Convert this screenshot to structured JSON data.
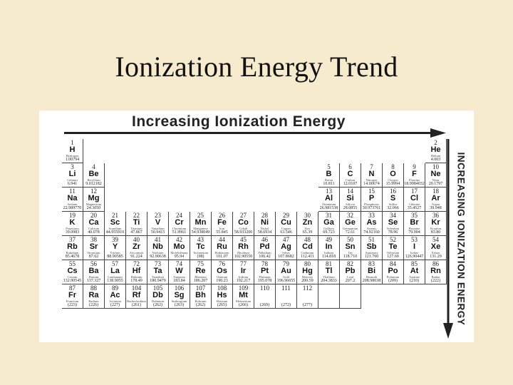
{
  "slide": {
    "title": "Ionization Energy Trend"
  },
  "figure": {
    "horizontal_label": "Increasing Ionization Energy",
    "vertical_label": "INCREASING IONIZATION ENERGY",
    "arrow_color": "#222222"
  },
  "elements": [
    {
      "n": "1",
      "s": "H",
      "name": "Hydrogen",
      "m": "1.00794",
      "row": 1,
      "col": 1
    },
    {
      "n": "2",
      "s": "He",
      "name": "Helium",
      "m": "4.003",
      "row": 1,
      "col": 18
    },
    {
      "n": "3",
      "s": "Li",
      "name": "Lithium",
      "m": "6.941",
      "row": 2,
      "col": 1
    },
    {
      "n": "4",
      "s": "Be",
      "name": "Beryllium",
      "m": "9.012182",
      "row": 2,
      "col": 2
    },
    {
      "n": "5",
      "s": "B",
      "name": "Boron",
      "m": "10.811",
      "row": 2,
      "col": 13
    },
    {
      "n": "6",
      "s": "C",
      "name": "Carbon",
      "m": "12.0107",
      "row": 2,
      "col": 14
    },
    {
      "n": "7",
      "s": "N",
      "name": "Nitrogen",
      "m": "14.00674",
      "row": 2,
      "col": 15
    },
    {
      "n": "8",
      "s": "O",
      "name": "Oxygen",
      "m": "15.9994",
      "row": 2,
      "col": 16
    },
    {
      "n": "9",
      "s": "F",
      "name": "Fluorine",
      "m": "18.9984032",
      "row": 2,
      "col": 17
    },
    {
      "n": "10",
      "s": "Ne",
      "name": "Neon",
      "m": "20.1797",
      "row": 2,
      "col": 18
    },
    {
      "n": "11",
      "s": "Na",
      "name": "Sodium",
      "m": "22.989770",
      "row": 3,
      "col": 1
    },
    {
      "n": "12",
      "s": "Mg",
      "name": "Magnesium",
      "m": "24.3050",
      "row": 3,
      "col": 2
    },
    {
      "n": "13",
      "s": "Al",
      "name": "Aluminum",
      "m": "26.981538",
      "row": 3,
      "col": 13
    },
    {
      "n": "14",
      "s": "Si",
      "name": "Silicon",
      "m": "28.0855",
      "row": 3,
      "col": 14
    },
    {
      "n": "15",
      "s": "P",
      "name": "Phosphorus",
      "m": "30.973761",
      "row": 3,
      "col": 15
    },
    {
      "n": "16",
      "s": "S",
      "name": "Sulfur",
      "m": "32.066",
      "row": 3,
      "col": 16
    },
    {
      "n": "17",
      "s": "Cl",
      "name": "Chlorine",
      "m": "35.4527",
      "row": 3,
      "col": 17
    },
    {
      "n": "18",
      "s": "Ar",
      "name": "Argon",
      "m": "39.948",
      "row": 3,
      "col": 18
    },
    {
      "n": "19",
      "s": "K",
      "name": "Potassium",
      "m": "39.0983",
      "row": 4,
      "col": 1
    },
    {
      "n": "20",
      "s": "Ca",
      "name": "Calcium",
      "m": "40.078",
      "row": 4,
      "col": 2
    },
    {
      "n": "21",
      "s": "Sc",
      "name": "Scandium",
      "m": "44.955910",
      "row": 4,
      "col": 3
    },
    {
      "n": "22",
      "s": "Ti",
      "name": "Titanium",
      "m": "47.867",
      "row": 4,
      "col": 4
    },
    {
      "n": "23",
      "s": "V",
      "name": "Vanadium",
      "m": "50.9415",
      "row": 4,
      "col": 5
    },
    {
      "n": "24",
      "s": "Cr",
      "name": "Chromium",
      "m": "51.9961",
      "row": 4,
      "col": 6
    },
    {
      "n": "25",
      "s": "Mn",
      "name": "Manganese",
      "m": "54.938049",
      "row": 4,
      "col": 7
    },
    {
      "n": "26",
      "s": "Fe",
      "name": "Iron",
      "m": "55.845",
      "row": 4,
      "col": 8
    },
    {
      "n": "27",
      "s": "Co",
      "name": "Cobalt",
      "m": "58.933200",
      "row": 4,
      "col": 9
    },
    {
      "n": "28",
      "s": "Ni",
      "name": "Nickel",
      "m": "58.6934",
      "row": 4,
      "col": 10
    },
    {
      "n": "29",
      "s": "Cu",
      "name": "Copper",
      "m": "63.546",
      "row": 4,
      "col": 11
    },
    {
      "n": "30",
      "s": "Zn",
      "name": "Zinc",
      "m": "65.39",
      "row": 4,
      "col": 12
    },
    {
      "n": "31",
      "s": "Ga",
      "name": "Gallium",
      "m": "69.723",
      "row": 4,
      "col": 13
    },
    {
      "n": "32",
      "s": "Ge",
      "name": "Germanium",
      "m": "72.61",
      "row": 4,
      "col": 14
    },
    {
      "n": "33",
      "s": "As",
      "name": "Arsenic",
      "m": "74.92160",
      "row": 4,
      "col": 15
    },
    {
      "n": "34",
      "s": "Se",
      "name": "Selenium",
      "m": "78.96",
      "row": 4,
      "col": 16
    },
    {
      "n": "35",
      "s": "Br",
      "name": "Bromine",
      "m": "79.904",
      "row": 4,
      "col": 17
    },
    {
      "n": "36",
      "s": "Kr",
      "name": "Krypton",
      "m": "83.80",
      "row": 4,
      "col": 18
    },
    {
      "n": "37",
      "s": "Rb",
      "name": "Rubidium",
      "m": "85.4678",
      "row": 5,
      "col": 1
    },
    {
      "n": "38",
      "s": "Sr",
      "name": "Strontium",
      "m": "87.62",
      "row": 5,
      "col": 2
    },
    {
      "n": "39",
      "s": "Y",
      "name": "Yttrium",
      "m": "88.90585",
      "row": 5,
      "col": 3
    },
    {
      "n": "40",
      "s": "Zr",
      "name": "Zirconium",
      "m": "91.224",
      "row": 5,
      "col": 4
    },
    {
      "n": "41",
      "s": "Nb",
      "name": "Niobium",
      "m": "92.90638",
      "row": 5,
      "col": 5
    },
    {
      "n": "42",
      "s": "Mo",
      "name": "Molybdenum",
      "m": "95.94",
      "row": 5,
      "col": 6
    },
    {
      "n": "43",
      "s": "Tc",
      "name": "Technetium",
      "m": "(98)",
      "row": 5,
      "col": 7
    },
    {
      "n": "44",
      "s": "Ru",
      "name": "Ruthenium",
      "m": "101.07",
      "row": 5,
      "col": 8
    },
    {
      "n": "45",
      "s": "Rh",
      "name": "Rhodium",
      "m": "102.90550",
      "row": 5,
      "col": 9
    },
    {
      "n": "46",
      "s": "Pd",
      "name": "Palladium",
      "m": "106.42",
      "row": 5,
      "col": 10
    },
    {
      "n": "47",
      "s": "Ag",
      "name": "Silver",
      "m": "107.8682",
      "row": 5,
      "col": 11
    },
    {
      "n": "48",
      "s": "Cd",
      "name": "Cadmium",
      "m": "112.411",
      "row": 5,
      "col": 12
    },
    {
      "n": "49",
      "s": "In",
      "name": "Indium",
      "m": "114.818",
      "row": 5,
      "col": 13
    },
    {
      "n": "50",
      "s": "Sn",
      "name": "Tin",
      "m": "118.710",
      "row": 5,
      "col": 14
    },
    {
      "n": "51",
      "s": "Sb",
      "name": "Antimony",
      "m": "121.760",
      "row": 5,
      "col": 15
    },
    {
      "n": "52",
      "s": "Te",
      "name": "Tellurium",
      "m": "127.60",
      "row": 5,
      "col": 16
    },
    {
      "n": "53",
      "s": "I",
      "name": "Iodine",
      "m": "126.90447",
      "row": 5,
      "col": 17
    },
    {
      "n": "54",
      "s": "Xe",
      "name": "Xenon",
      "m": "131.29",
      "row": 5,
      "col": 18
    },
    {
      "n": "55",
      "s": "Cs",
      "name": "Cesium",
      "m": "132.90545",
      "row": 6,
      "col": 1
    },
    {
      "n": "56",
      "s": "Ba",
      "name": "Barium",
      "m": "137.327",
      "row": 6,
      "col": 2
    },
    {
      "n": "57",
      "s": "La",
      "name": "Lanthanum",
      "m": "138.9055",
      "row": 6,
      "col": 3
    },
    {
      "n": "72",
      "s": "Hf",
      "name": "Hafnium",
      "m": "178.49",
      "row": 6,
      "col": 4
    },
    {
      "n": "73",
      "s": "Ta",
      "name": "Tantalum",
      "m": "180.9479",
      "row": 6,
      "col": 5
    },
    {
      "n": "74",
      "s": "W",
      "name": "Tungsten",
      "m": "183.84",
      "row": 6,
      "col": 6
    },
    {
      "n": "75",
      "s": "Re",
      "name": "Rhenium",
      "m": "186.207",
      "row": 6,
      "col": 7
    },
    {
      "n": "76",
      "s": "Os",
      "name": "Osmium",
      "m": "190.23",
      "row": 6,
      "col": 8
    },
    {
      "n": "77",
      "s": "Ir",
      "name": "Iridium",
      "m": "192.217",
      "row": 6,
      "col": 9
    },
    {
      "n": "78",
      "s": "Pt",
      "name": "Platinum",
      "m": "195.078",
      "row": 6,
      "col": 10
    },
    {
      "n": "79",
      "s": "Au",
      "name": "Gold",
      "m": "196.96655",
      "row": 6,
      "col": 11
    },
    {
      "n": "80",
      "s": "Hg",
      "name": "Mercury",
      "m": "200.59",
      "row": 6,
      "col": 12
    },
    {
      "n": "81",
      "s": "Tl",
      "name": "Thallium",
      "m": "204.3833",
      "row": 6,
      "col": 13
    },
    {
      "n": "82",
      "s": "Pb",
      "name": "Lead",
      "m": "207.2",
      "row": 6,
      "col": 14
    },
    {
      "n": "83",
      "s": "Bi",
      "name": "Bismuth",
      "m": "208.98038",
      "row": 6,
      "col": 15
    },
    {
      "n": "84",
      "s": "Po",
      "name": "Polonium",
      "m": "(209)",
      "row": 6,
      "col": 16
    },
    {
      "n": "85",
      "s": "At",
      "name": "Astatine",
      "m": "(210)",
      "row": 6,
      "col": 17
    },
    {
      "n": "86",
      "s": "Rn",
      "name": "Radon",
      "m": "(222)",
      "row": 6,
      "col": 18
    },
    {
      "n": "87",
      "s": "Fr",
      "name": "Francium",
      "m": "(223)",
      "row": 7,
      "col": 1
    },
    {
      "n": "88",
      "s": "Ra",
      "name": "Radium",
      "m": "(226)",
      "row": 7,
      "col": 2
    },
    {
      "n": "89",
      "s": "Ac",
      "name": "Actinium",
      "m": "(227)",
      "row": 7,
      "col": 3
    },
    {
      "n": "104",
      "s": "Rf",
      "name": "Rutherfordium",
      "m": "(261)",
      "row": 7,
      "col": 4
    },
    {
      "n": "105",
      "s": "Db",
      "name": "Dubnium",
      "m": "(262)",
      "row": 7,
      "col": 5
    },
    {
      "n": "106",
      "s": "Sg",
      "name": "Seaborgium",
      "m": "(263)",
      "row": 7,
      "col": 6
    },
    {
      "n": "107",
      "s": "Bh",
      "name": "Bohrium",
      "m": "(262)",
      "row": 7,
      "col": 7
    },
    {
      "n": "108",
      "s": "Hs",
      "name": "Hassium",
      "m": "(265)",
      "row": 7,
      "col": 8
    },
    {
      "n": "109",
      "s": "Mt",
      "name": "Meitnerium",
      "m": "(266)",
      "row": 7,
      "col": 9
    },
    {
      "n": "110",
      "s": "",
      "name": "",
      "m": "(269)",
      "row": 7,
      "col": 10
    },
    {
      "n": "111",
      "s": "",
      "name": "",
      "m": "(272)",
      "row": 7,
      "col": 11
    },
    {
      "n": "112",
      "s": "",
      "name": "",
      "m": "(277)",
      "row": 7,
      "col": 12
    },
    {
      "n": "",
      "s": "",
      "name": "",
      "m": "",
      "row": 7,
      "col": 13
    },
    {
      "n": "",
      "s": "",
      "name": "",
      "m": "",
      "row": 7,
      "col": 14
    }
  ]
}
